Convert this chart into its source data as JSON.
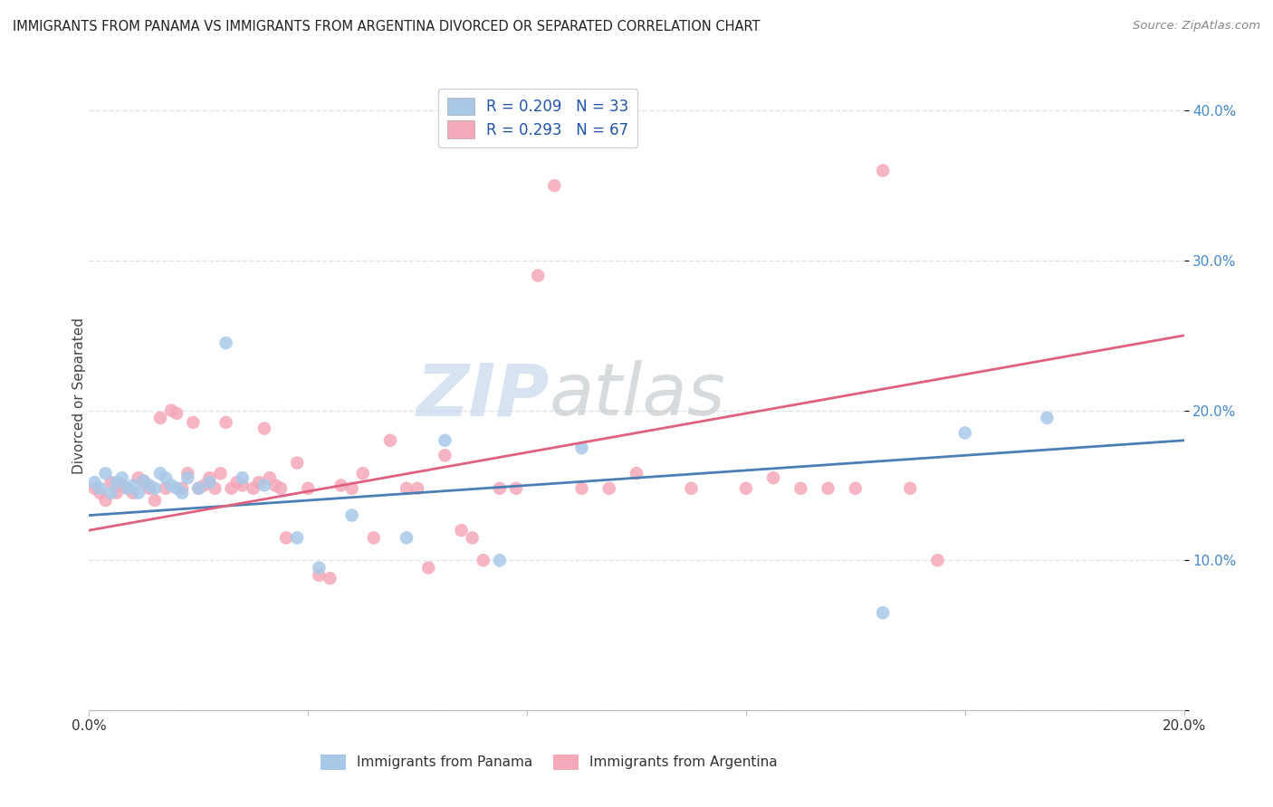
{
  "title": "IMMIGRANTS FROM PANAMA VS IMMIGRANTS FROM ARGENTINA DIVORCED OR SEPARATED CORRELATION CHART",
  "source": "Source: ZipAtlas.com",
  "ylabel": "Divorced or Separated",
  "xmin": 0.0,
  "xmax": 0.2,
  "ymin": 0.0,
  "ymax": 0.42,
  "xtick_positions": [
    0.0,
    0.04,
    0.08,
    0.12,
    0.16,
    0.2
  ],
  "xtick_labels": [
    "0.0%",
    "",
    "",
    "",
    "",
    "20.0%"
  ],
  "ytick_positions": [
    0.0,
    0.1,
    0.2,
    0.3,
    0.4
  ],
  "ytick_labels": [
    "",
    "10.0%",
    "20.0%",
    "30.0%",
    "40.0%"
  ],
  "color_panama": "#a8c8e8",
  "color_argentina": "#f4a8b8",
  "color_line_panama": "#4a7eb5",
  "color_line_argentina": "#e06080",
  "r_panama": 0.209,
  "n_panama": 33,
  "r_argentina": 0.293,
  "n_argentina": 67,
  "line_panama_y0": 0.13,
  "line_panama_y1": 0.18,
  "line_argentina_y0": 0.12,
  "line_argentina_y1": 0.25,
  "panama_x": [
    0.001,
    0.002,
    0.003,
    0.004,
    0.005,
    0.006,
    0.007,
    0.008,
    0.009,
    0.01,
    0.011,
    0.012,
    0.013,
    0.014,
    0.015,
    0.016,
    0.017,
    0.018,
    0.02,
    0.022,
    0.025,
    0.028,
    0.032,
    0.038,
    0.042,
    0.048,
    0.058,
    0.065,
    0.075,
    0.09,
    0.145,
    0.16,
    0.175
  ],
  "panama_y": [
    0.152,
    0.148,
    0.158,
    0.145,
    0.152,
    0.155,
    0.148,
    0.15,
    0.145,
    0.153,
    0.15,
    0.148,
    0.158,
    0.155,
    0.15,
    0.148,
    0.145,
    0.155,
    0.148,
    0.152,
    0.245,
    0.155,
    0.15,
    0.115,
    0.095,
    0.13,
    0.115,
    0.18,
    0.1,
    0.175,
    0.065,
    0.185,
    0.195
  ],
  "argentina_x": [
    0.001,
    0.002,
    0.003,
    0.004,
    0.005,
    0.006,
    0.007,
    0.008,
    0.009,
    0.01,
    0.011,
    0.012,
    0.013,
    0.014,
    0.015,
    0.016,
    0.017,
    0.018,
    0.019,
    0.02,
    0.021,
    0.022,
    0.023,
    0.024,
    0.025,
    0.026,
    0.027,
    0.028,
    0.03,
    0.031,
    0.032,
    0.033,
    0.034,
    0.035,
    0.036,
    0.038,
    0.04,
    0.042,
    0.044,
    0.046,
    0.048,
    0.05,
    0.052,
    0.055,
    0.058,
    0.06,
    0.062,
    0.065,
    0.068,
    0.07,
    0.072,
    0.075,
    0.078,
    0.082,
    0.085,
    0.09,
    0.095,
    0.1,
    0.11,
    0.12,
    0.125,
    0.13,
    0.135,
    0.14,
    0.145,
    0.15,
    0.155
  ],
  "argentina_y": [
    0.148,
    0.145,
    0.14,
    0.152,
    0.145,
    0.15,
    0.148,
    0.145,
    0.155,
    0.152,
    0.148,
    0.14,
    0.195,
    0.148,
    0.2,
    0.198,
    0.148,
    0.158,
    0.192,
    0.148,
    0.15,
    0.155,
    0.148,
    0.158,
    0.192,
    0.148,
    0.152,
    0.15,
    0.148,
    0.152,
    0.188,
    0.155,
    0.15,
    0.148,
    0.115,
    0.165,
    0.148,
    0.09,
    0.088,
    0.15,
    0.148,
    0.158,
    0.115,
    0.18,
    0.148,
    0.148,
    0.095,
    0.17,
    0.12,
    0.115,
    0.1,
    0.148,
    0.148,
    0.29,
    0.35,
    0.148,
    0.148,
    0.158,
    0.148,
    0.148,
    0.155,
    0.148,
    0.148,
    0.148,
    0.36,
    0.148,
    0.1
  ],
  "watermark_zip": "ZIP",
  "watermark_atlas": "atlas",
  "background_color": "#ffffff",
  "grid_color": "#e0e4e8",
  "legend_label_color": "#2255aa",
  "ytick_color": "#4488cc"
}
